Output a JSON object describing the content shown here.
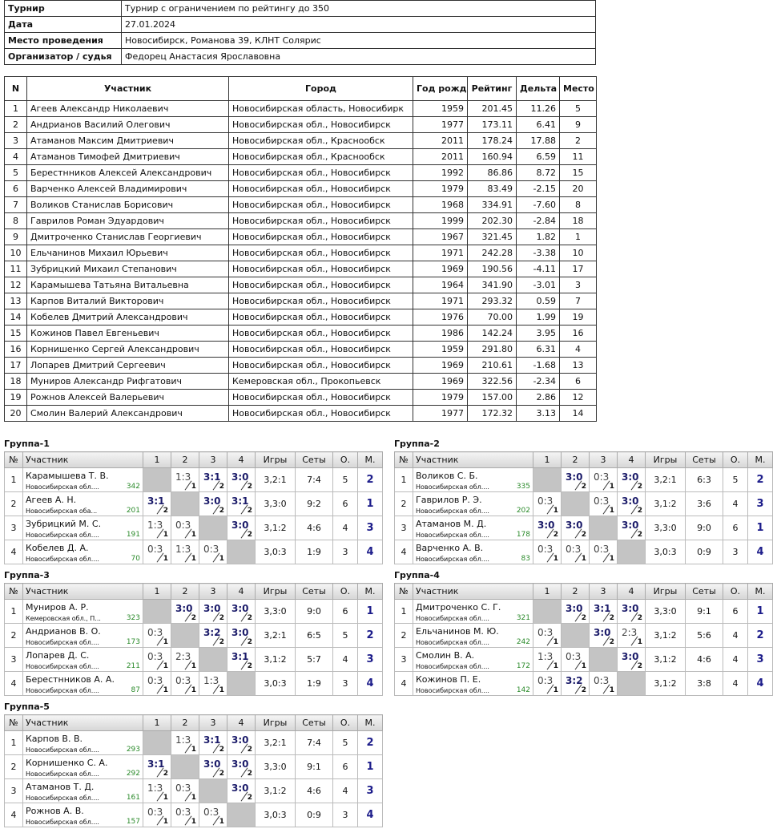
{
  "info": {
    "rows": [
      [
        "Турнир",
        "Турнир с ограничением по рейтингу до 350"
      ],
      [
        "Дата",
        "27.01.2024"
      ],
      [
        "Место проведения",
        "Новосибирск, Романова 39, КЛНТ Солярис"
      ],
      [
        "Организатор / судья",
        "Федорец Анастасия Ярославовна"
      ]
    ]
  },
  "participants": {
    "header": [
      "N",
      "Участник",
      "Город",
      "Год рожд.",
      "Рейтинг",
      "Дельта",
      "Место"
    ],
    "rows": [
      [
        "1",
        "Агеев Александр Николаевич",
        "Новосибирская область, Новосибирк",
        "1959",
        "201.45",
        "11.26",
        "5"
      ],
      [
        "2",
        "Андрианов Василий Олегович",
        "Новосибирская обл., Новосибирск",
        "1977",
        "173.11",
        "6.41",
        "9"
      ],
      [
        "3",
        "Атаманов Максим Дмитриевич",
        "Новосибирская обл., Краснообск",
        "2011",
        "178.24",
        "17.88",
        "2"
      ],
      [
        "4",
        "Атаманов Тимофей Дмитриевич",
        "Новосибирская обл., Краснообск",
        "2011",
        "160.94",
        "6.59",
        "11"
      ],
      [
        "5",
        "Берестнников Алексей Александрович",
        "Новосибирская обл., Новосибирск",
        "1992",
        "86.86",
        "8.72",
        "15"
      ],
      [
        "6",
        "Варченко Алексей Владимирович",
        "Новосибирская обл., Новосибирск",
        "1979",
        "83.49",
        "-2.15",
        "20"
      ],
      [
        "7",
        "Воликов Станислав Борисович",
        "Новосибирская обл., Новосибирск",
        "1968",
        "334.91",
        "-7.60",
        "8"
      ],
      [
        "8",
        "Гаврилов Роман Эдуардович",
        "Новосибирская обл., Новосибирск",
        "1999",
        "202.30",
        "-2.84",
        "18"
      ],
      [
        "9",
        "Дмитроченко Станислав Георгиевич",
        "Новосибирская обл., Новосибирск",
        "1967",
        "321.45",
        "1.82",
        "1"
      ],
      [
        "10",
        "Ельчанинов Михаил Юрьевич",
        "Новосибирская обл., Новосибирск",
        "1971",
        "242.28",
        "-3.38",
        "10"
      ],
      [
        "11",
        "Зубрицкий Михаил Степанович",
        "Новосибирская обл., Новосибирск",
        "1969",
        "190.56",
        "-4.11",
        "17"
      ],
      [
        "12",
        "Карамышева Татьяна Витальевна",
        "Новосибирская обл., Новосибирск",
        "1964",
        "341.90",
        "-3.01",
        "3"
      ],
      [
        "13",
        "Карпов Виталий Викторович",
        "Новосибирская обл., Новосибирск",
        "1971",
        "293.32",
        "0.59",
        "7"
      ],
      [
        "14",
        "Кобелев Дмитрий Александрович",
        "Новосибирская обл., Новосибирск",
        "1976",
        "70.00",
        "1.99",
        "19"
      ],
      [
        "15",
        "Кожинов Павел Евгеньевич",
        "Новосибирская обл., Новосибирск",
        "1986",
        "142.24",
        "3.95",
        "16"
      ],
      [
        "16",
        "Корнишенко Сергей Александрович",
        "Новосибирская обл., Новосибирск",
        "1959",
        "291.80",
        "6.31",
        "4"
      ],
      [
        "17",
        "Лопарев Дмитрий Сергеевич",
        "Новосибирская обл., Новосибирск",
        "1969",
        "210.61",
        "-1.68",
        "13"
      ],
      [
        "18",
        "Муниров Александр Рифгатович",
        "Кемеровская обл., Прокопьевск",
        "1969",
        "322.56",
        "-2.34",
        "6"
      ],
      [
        "19",
        "Рожнов Алексей Валерьевич",
        "Новосибирская обл., Новосибирск",
        "1979",
        "157.00",
        "2.86",
        "12"
      ],
      [
        "20",
        "Смолин Валерий Александрович",
        "Новосибирская обл., Новосибирск",
        "1977",
        "172.32",
        "3.13",
        "14"
      ]
    ]
  },
  "group_header": [
    "№",
    "Участник",
    "1",
    "2",
    "3",
    "4",
    "Игры",
    "Сеты",
    "О.",
    "М."
  ],
  "groups": [
    {
      "title": "Группа-1",
      "rows": [
        {
          "n": "1",
          "name": "Карамышева Т. В.",
          "region": "Новосибирская обл....",
          "rating": "342",
          "results": [
            null,
            {
              "score": "1:3",
              "pts": "1"
            },
            {
              "score": "3:1",
              "pts": "2"
            },
            {
              "score": "3:0",
              "pts": "2"
            }
          ],
          "games": "3,2:1",
          "sets": "7:4",
          "points": "5",
          "place": "2"
        },
        {
          "n": "2",
          "name": "Агеев А. Н.",
          "region": "Новосибирская оба...",
          "rating": "201",
          "results": [
            {
              "score": "3:1",
              "pts": "2"
            },
            null,
            {
              "score": "3:0",
              "pts": "2"
            },
            {
              "score": "3:1",
              "pts": "2"
            }
          ],
          "games": "3,3:0",
          "sets": "9:2",
          "points": "6",
          "place": "1"
        },
        {
          "n": "3",
          "name": "Зубрицкий М. С.",
          "region": "Новосибирская обл....",
          "rating": "191",
          "results": [
            {
              "score": "1:3",
              "pts": "1"
            },
            {
              "score": "0:3",
              "pts": "1"
            },
            null,
            {
              "score": "3:0",
              "pts": "2"
            }
          ],
          "games": "3,1:2",
          "sets": "4:6",
          "points": "4",
          "place": "3"
        },
        {
          "n": "4",
          "name": "Кобелев Д. А.",
          "region": "Новосибирская обл....",
          "rating": "70",
          "results": [
            {
              "score": "0:3",
              "pts": "1"
            },
            {
              "score": "1:3",
              "pts": "1"
            },
            {
              "score": "0:3",
              "pts": "1"
            },
            null
          ],
          "games": "3,0:3",
          "sets": "1:9",
          "points": "3",
          "place": "4"
        }
      ]
    },
    {
      "title": "Группа-2",
      "rows": [
        {
          "n": "1",
          "name": "Воликов С. Б.",
          "region": "Новосибирская обл....",
          "rating": "335",
          "results": [
            null,
            {
              "score": "3:0",
              "pts": "2"
            },
            {
              "score": "0:3",
              "pts": "1"
            },
            {
              "score": "3:0",
              "pts": "2"
            }
          ],
          "games": "3,2:1",
          "sets": "6:3",
          "points": "5",
          "place": "2"
        },
        {
          "n": "2",
          "name": "Гаврилов Р. Э.",
          "region": "Новосибирская обл....",
          "rating": "202",
          "results": [
            {
              "score": "0:3",
              "pts": "1"
            },
            null,
            {
              "score": "0:3",
              "pts": "1"
            },
            {
              "score": "3:0",
              "pts": "2"
            }
          ],
          "games": "3,1:2",
          "sets": "3:6",
          "points": "4",
          "place": "3"
        },
        {
          "n": "3",
          "name": "Атаманов М. Д.",
          "region": "Новосибирская обл....",
          "rating": "178",
          "results": [
            {
              "score": "3:0",
              "pts": "2"
            },
            {
              "score": "3:0",
              "pts": "2"
            },
            null,
            {
              "score": "3:0",
              "pts": "2"
            }
          ],
          "games": "3,3:0",
          "sets": "9:0",
          "points": "6",
          "place": "1"
        },
        {
          "n": "4",
          "name": "Варченко А. В.",
          "region": "Новосибирская обл....",
          "rating": "83",
          "results": [
            {
              "score": "0:3",
              "pts": "1"
            },
            {
              "score": "0:3",
              "pts": "1"
            },
            {
              "score": "0:3",
              "pts": "1"
            },
            null
          ],
          "games": "3,0:3",
          "sets": "0:9",
          "points": "3",
          "place": "4"
        }
      ]
    },
    {
      "title": "Группа-3",
      "rows": [
        {
          "n": "1",
          "name": "Муниров А. Р.",
          "region": "Кемеровская обл., П...",
          "rating": "323",
          "results": [
            null,
            {
              "score": "3:0",
              "pts": "2"
            },
            {
              "score": "3:0",
              "pts": "2"
            },
            {
              "score": "3:0",
              "pts": "2"
            }
          ],
          "games": "3,3:0",
          "sets": "9:0",
          "points": "6",
          "place": "1"
        },
        {
          "n": "2",
          "name": "Андрианов В. О.",
          "region": "Новосибирская обл....",
          "rating": "173",
          "results": [
            {
              "score": "0:3",
              "pts": "1"
            },
            null,
            {
              "score": "3:2",
              "pts": "2"
            },
            {
              "score": "3:0",
              "pts": "2"
            }
          ],
          "games": "3,2:1",
          "sets": "6:5",
          "points": "5",
          "place": "2"
        },
        {
          "n": "3",
          "name": "Лопарев Д. С.",
          "region": "Новосибирская обл....",
          "rating": "211",
          "results": [
            {
              "score": "0:3",
              "pts": "1"
            },
            {
              "score": "2:3",
              "pts": "1"
            },
            null,
            {
              "score": "3:1",
              "pts": "2"
            }
          ],
          "games": "3,1:2",
          "sets": "5:7",
          "points": "4",
          "place": "3"
        },
        {
          "n": "4",
          "name": "Берестнников А. А.",
          "region": "Новосибирская обл....",
          "rating": "87",
          "results": [
            {
              "score": "0:3",
              "pts": "1"
            },
            {
              "score": "0:3",
              "pts": "1"
            },
            {
              "score": "1:3",
              "pts": "1"
            },
            null
          ],
          "games": "3,0:3",
          "sets": "1:9",
          "points": "3",
          "place": "4"
        }
      ]
    },
    {
      "title": "Группа-4",
      "rows": [
        {
          "n": "1",
          "name": "Дмитроченко С. Г.",
          "region": "Новосибирская обл....",
          "rating": "321",
          "results": [
            null,
            {
              "score": "3:0",
              "pts": "2"
            },
            {
              "score": "3:1",
              "pts": "2"
            },
            {
              "score": "3:0",
              "pts": "2"
            }
          ],
          "games": "3,3:0",
          "sets": "9:1",
          "points": "6",
          "place": "1"
        },
        {
          "n": "2",
          "name": "Ельчанинов М. Ю.",
          "region": "Новосибирская обл....",
          "rating": "242",
          "results": [
            {
              "score": "0:3",
              "pts": "1"
            },
            null,
            {
              "score": "3:0",
              "pts": "2"
            },
            {
              "score": "2:3",
              "pts": "1"
            }
          ],
          "games": "3,1:2",
          "sets": "5:6",
          "points": "4",
          "place": "2"
        },
        {
          "n": "3",
          "name": "Смолин В. А.",
          "region": "Новосибирская обл....",
          "rating": "172",
          "results": [
            {
              "score": "1:3",
              "pts": "1"
            },
            {
              "score": "0:3",
              "pts": "1"
            },
            null,
            {
              "score": "3:0",
              "pts": "2"
            }
          ],
          "games": "3,1:2",
          "sets": "4:6",
          "points": "4",
          "place": "3"
        },
        {
          "n": "4",
          "name": "Кожинов П. Е.",
          "region": "Новосибирская обл....",
          "rating": "142",
          "results": [
            {
              "score": "0:3",
              "pts": "1"
            },
            {
              "score": "3:2",
              "pts": "2"
            },
            {
              "score": "0:3",
              "pts": "1"
            },
            null
          ],
          "games": "3,1:2",
          "sets": "3:8",
          "points": "4",
          "place": "4"
        }
      ]
    },
    {
      "title": "Группа-5",
      "rows": [
        {
          "n": "1",
          "name": "Карпов В. В.",
          "region": "Новосибирская обл....",
          "rating": "293",
          "results": [
            null,
            {
              "score": "1:3",
              "pts": "1"
            },
            {
              "score": "3:1",
              "pts": "2"
            },
            {
              "score": "3:0",
              "pts": "2"
            }
          ],
          "games": "3,2:1",
          "sets": "7:4",
          "points": "5",
          "place": "2"
        },
        {
          "n": "2",
          "name": "Корнишенко С. А.",
          "region": "Новосибирская обл....",
          "rating": "292",
          "results": [
            {
              "score": "3:1",
              "pts": "2"
            },
            null,
            {
              "score": "3:0",
              "pts": "2"
            },
            {
              "score": "3:0",
              "pts": "2"
            }
          ],
          "games": "3,3:0",
          "sets": "9:1",
          "points": "6",
          "place": "1"
        },
        {
          "n": "3",
          "name": "Атаманов Т. Д.",
          "region": "Новосибирская обл....",
          "rating": "161",
          "results": [
            {
              "score": "1:3",
              "pts": "1"
            },
            {
              "score": "0:3",
              "pts": "1"
            },
            null,
            {
              "score": "3:0",
              "pts": "2"
            }
          ],
          "games": "3,1:2",
          "sets": "4:6",
          "points": "4",
          "place": "3"
        },
        {
          "n": "4",
          "name": "Рожнов А. В.",
          "region": "Новосибирская обл....",
          "rating": "157",
          "results": [
            {
              "score": "0:3",
              "pts": "1"
            },
            {
              "score": "0:3",
              "pts": "1"
            },
            {
              "score": "0:3",
              "pts": "1"
            },
            null
          ],
          "games": "3,0:3",
          "sets": "0:9",
          "points": "3",
          "place": "4"
        }
      ]
    }
  ]
}
